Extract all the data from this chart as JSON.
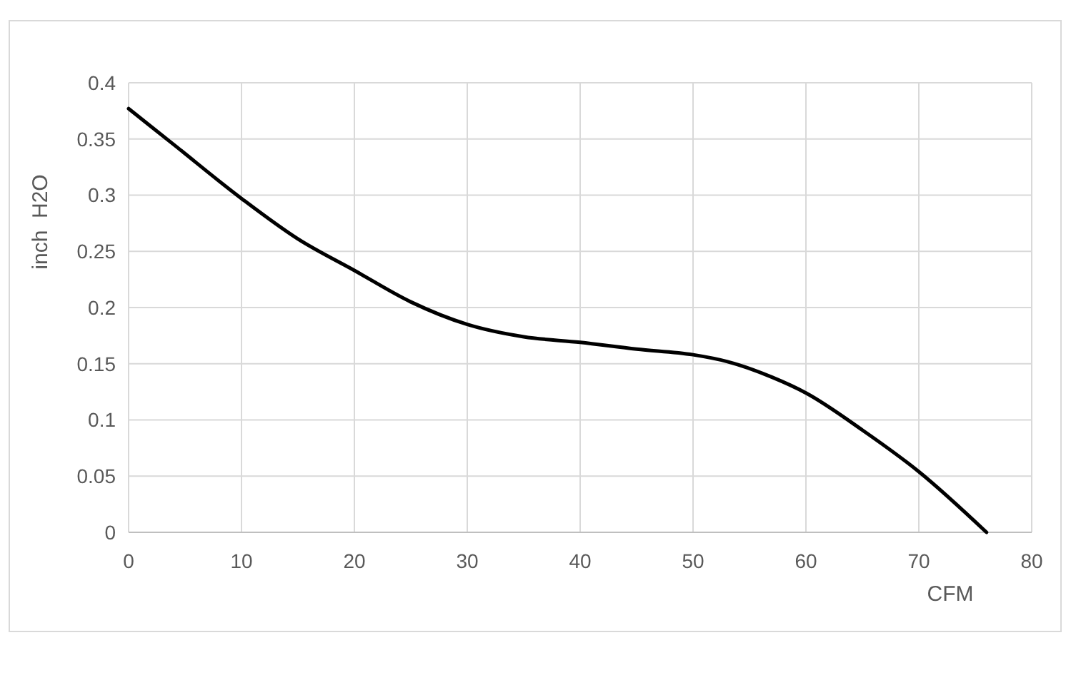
{
  "chart_data": {
    "type": "line",
    "xlabel": "CFM",
    "ylabel": "inch  H2O",
    "series": [
      {
        "color": "#000000",
        "x": [
          0,
          4,
          10,
          15,
          20,
          25,
          30,
          35,
          40,
          45,
          50,
          53,
          57,
          60,
          65,
          70,
          76
        ],
        "values": [
          0.377,
          0.345,
          0.297,
          0.261,
          0.233,
          0.205,
          0.185,
          0.174,
          0.169,
          0.163,
          0.158,
          0.152,
          0.138,
          0.124,
          0.091,
          0.054,
          0
        ]
      }
    ],
    "xlim": [
      0,
      80
    ],
    "xticks": [
      0,
      10,
      20,
      30,
      40,
      50,
      60,
      70,
      80
    ],
    "ylim": [
      0,
      0.4
    ],
    "yticks": [
      0,
      0.05,
      0.1,
      0.15,
      0.2,
      0.25,
      0.3,
      0.35,
      0.4
    ],
    "grid": true,
    "marker": "none",
    "line_style": "solid"
  }
}
